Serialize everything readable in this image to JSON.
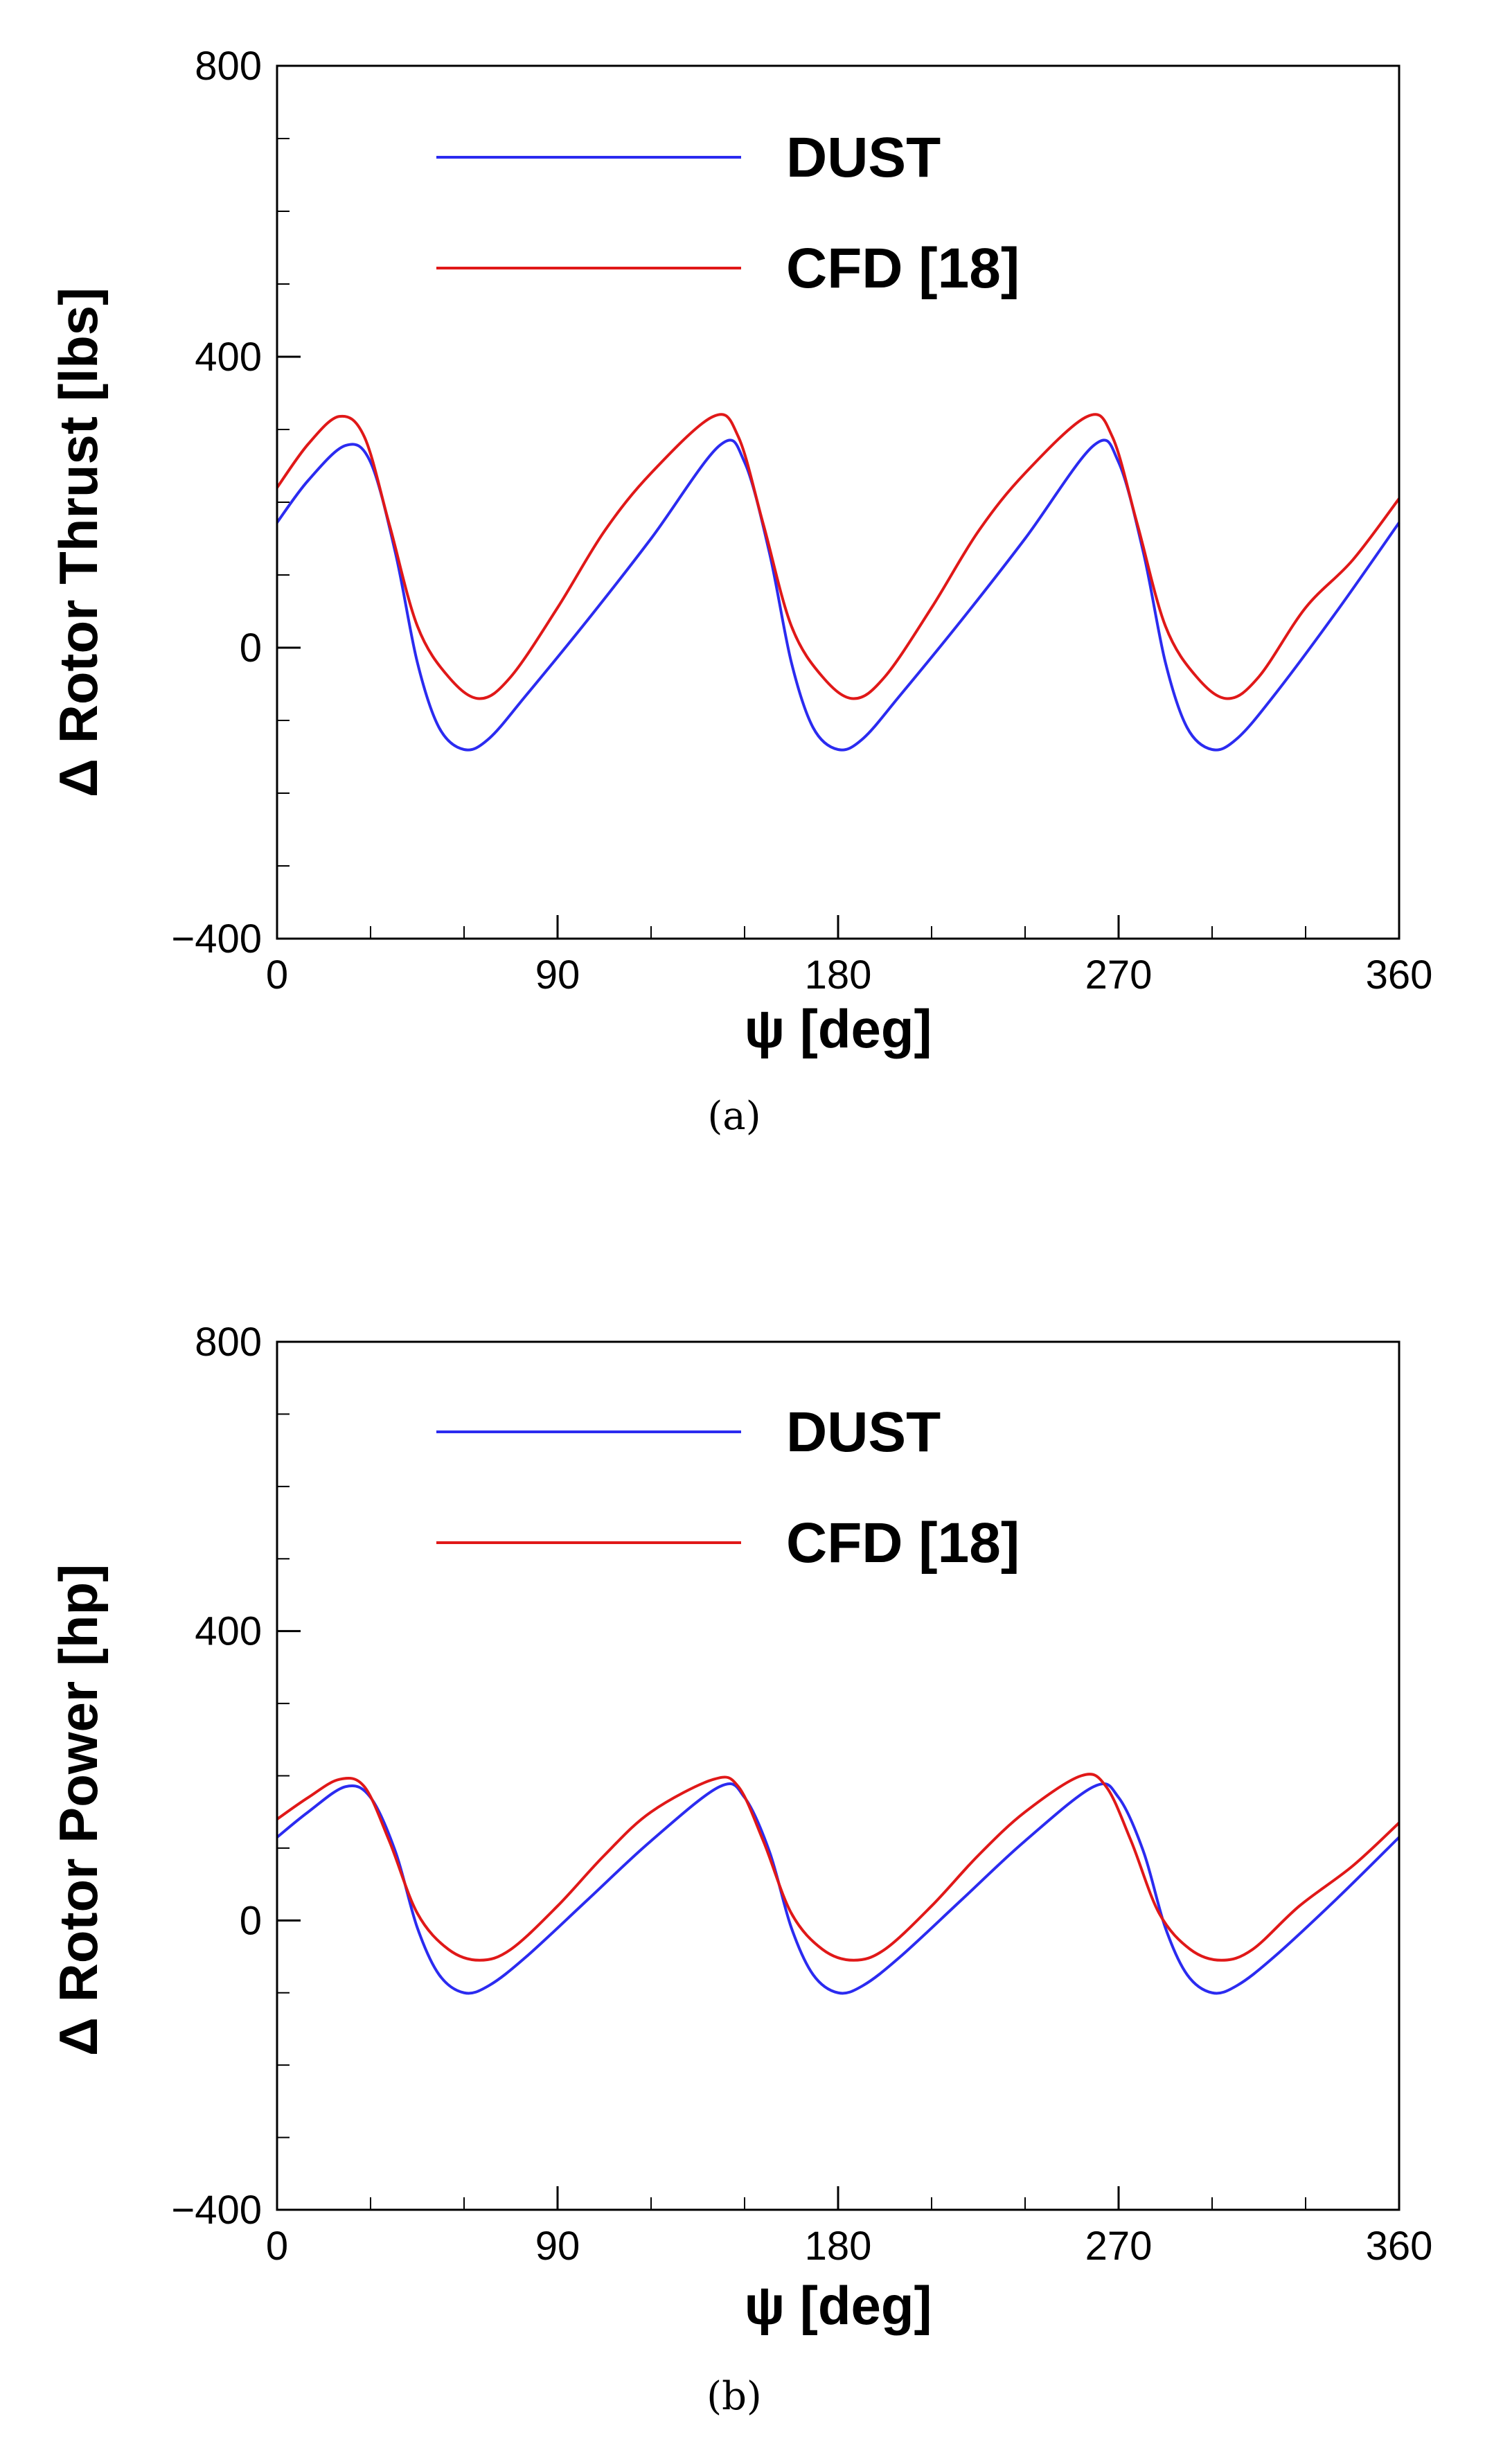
{
  "chart_data": [
    {
      "type": "line",
      "panel": "a",
      "caption": "(a)",
      "xlabel": "ψ [deg]",
      "ylabel": "Δ Rotor Thrust [lbs]",
      "xlim": [
        0,
        360
      ],
      "ylim": [
        -400,
        800
      ],
      "xticks": [
        0,
        90,
        180,
        270,
        360
      ],
      "xtick_labels": [
        "0",
        "90",
        "180",
        "270",
        "360"
      ],
      "yticks": [
        -400,
        0,
        400,
        800
      ],
      "ytick_labels": [
        "-400",
        "0",
        "400",
        "800"
      ],
      "yminor": [
        -300,
        -200,
        -100,
        100,
        200,
        300,
        500,
        600,
        700
      ],
      "xminor": [
        30,
        60,
        120,
        150,
        210,
        240,
        300,
        330
      ],
      "legend_position": "top",
      "series": [
        {
          "name": "DUST",
          "color": "#2b2bf0",
          "x": [
            0,
            10,
            22,
            30,
            38,
            45,
            52,
            60,
            68,
            80,
            100,
            120,
            142,
            150,
            158,
            165,
            172,
            180,
            188,
            200,
            220,
            240,
            262,
            270,
            278,
            285,
            292,
            300,
            308,
            320,
            340,
            360
          ],
          "y": [
            172,
            230,
            278,
            255,
            130,
            -20,
            -110,
            -140,
            -125,
            -65,
            40,
            150,
            278,
            255,
            130,
            -20,
            -110,
            -140,
            -125,
            -65,
            40,
            150,
            278,
            255,
            130,
            -20,
            -110,
            -140,
            -125,
            -65,
            50,
            172
          ]
        },
        {
          "name": "CFD [18]",
          "color": "#e01818",
          "x": [
            0,
            10,
            20,
            28,
            36,
            45,
            55,
            65,
            75,
            90,
            105,
            120,
            140,
            148,
            156,
            165,
            175,
            185,
            195,
            210,
            225,
            240,
            260,
            268,
            276,
            285,
            295,
            305,
            315,
            330,
            345,
            360
          ],
          "y": [
            220,
            280,
            318,
            290,
            170,
            30,
            -40,
            -70,
            -40,
            55,
            160,
            240,
            318,
            290,
            170,
            30,
            -40,
            -70,
            -40,
            55,
            160,
            240,
            318,
            290,
            170,
            30,
            -40,
            -70,
            -40,
            55,
            120,
            205
          ]
        }
      ]
    },
    {
      "type": "line",
      "panel": "b",
      "caption": "(b)",
      "xlabel": "ψ [deg]",
      "ylabel": "Δ Rotor Power [hp]",
      "xlim": [
        0,
        360
      ],
      "ylim": [
        -400,
        800
      ],
      "xticks": [
        0,
        90,
        180,
        270,
        360
      ],
      "xtick_labels": [
        "0",
        "90",
        "180",
        "270",
        "360"
      ],
      "yticks": [
        -400,
        0,
        400,
        800
      ],
      "ytick_labels": [
        "-400",
        "0",
        "400",
        "800"
      ],
      "yminor": [
        -300,
        -200,
        -100,
        100,
        200,
        300,
        500,
        600,
        700
      ],
      "xminor": [
        30,
        60,
        120,
        150,
        210,
        240,
        300,
        330
      ],
      "legend_position": "top",
      "series": [
        {
          "name": "DUST",
          "color": "#2b2bf0",
          "x": [
            0,
            10,
            22,
            30,
            38,
            45,
            52,
            60,
            68,
            80,
            100,
            120,
            142,
            150,
            158,
            165,
            172,
            180,
            188,
            200,
            220,
            240,
            262,
            270,
            278,
            285,
            292,
            300,
            308,
            320,
            340,
            360
          ],
          "y": [
            115,
            150,
            185,
            170,
            95,
            -10,
            -75,
            -100,
            -90,
            -50,
            30,
            110,
            185,
            170,
            95,
            -10,
            -75,
            -100,
            -90,
            -50,
            30,
            110,
            185,
            170,
            95,
            -10,
            -75,
            -100,
            -90,
            -50,
            30,
            115
          ]
        },
        {
          "name": "CFD [18]",
          "color": "#e01818",
          "x": [
            0,
            10,
            20,
            28,
            36,
            45,
            55,
            65,
            75,
            90,
            105,
            120,
            140,
            148,
            156,
            165,
            175,
            185,
            195,
            210,
            225,
            240,
            258,
            266,
            274,
            283,
            293,
            303,
            313,
            328,
            345,
            360
          ],
          "y": [
            140,
            170,
            195,
            185,
            110,
            10,
            -40,
            -55,
            -40,
            20,
            90,
            150,
            195,
            185,
            110,
            10,
            -40,
            -55,
            -40,
            20,
            90,
            150,
            200,
            185,
            110,
            10,
            -40,
            -55,
            -40,
            20,
            75,
            135
          ]
        }
      ]
    }
  ]
}
